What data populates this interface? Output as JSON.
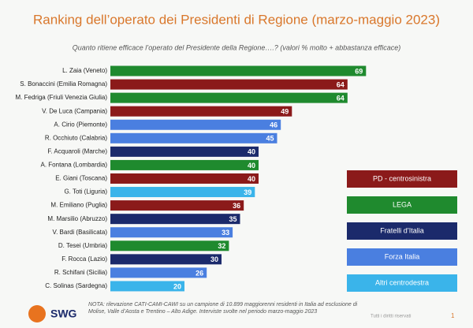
{
  "chart_data": {
    "type": "bar",
    "orientation": "horizontal",
    "title": "Ranking dell’operato dei Presidenti di Regione (marzo-maggio 2023)",
    "subtitle": "Quanto ritiene efficace l’operato del Presidente della Regione….? (valori % molto + abbastanza efficace)",
    "categories": [
      "L. Zaia (Veneto)",
      "S. Bonaccini (Emilia Romagna)",
      "M. Fedriga (Friuli Venezia Giulia)",
      "V. De Luca (Campania)",
      "A. Cirio (Piemonte)",
      "R. Occhiuto (Calabria)",
      "F. Acquaroli (Marche)",
      "A. Fontana (Lombardia)",
      "E. Giani (Toscana)",
      "G. Toti (Liguria)",
      "M. Emiliano (Puglia)",
      "M. Marsilio (Abruzzo)",
      "V. Bardi (Basilicata)",
      "D. Tesei (Umbria)",
      "F. Rocca (Lazio)",
      "R. Schifani (Sicilia)",
      "C. Solinas (Sardegna)"
    ],
    "values": [
      69,
      64,
      64,
      49,
      46,
      45,
      40,
      40,
      40,
      39,
      36,
      35,
      33,
      32,
      30,
      26,
      20
    ],
    "colors": [
      "#1f8a2e",
      "#8b1a1a",
      "#1f8a2e",
      "#8b1a1a",
      "#4a7fe0",
      "#4a7fe0",
      "#1b2a6b",
      "#1f8a2e",
      "#8b1a1a",
      "#3ab4ea",
      "#8b1a1a",
      "#1b2a6b",
      "#4a7fe0",
      "#1f8a2e",
      "#1b2a6b",
      "#4a7fe0",
      "#3ab4ea"
    ],
    "legend": [
      {
        "name": "PD - centrosinistra",
        "color": "#8b1a1a"
      },
      {
        "name": "LEGA",
        "color": "#1f8a2e"
      },
      {
        "name": "Fratelli d’Italia",
        "color": "#1b2a6b"
      },
      {
        "name": "Forza Italia",
        "color": "#4a7fe0"
      },
      {
        "name": "Altri centrodestra",
        "color": "#3ab4ea"
      }
    ],
    "logo": "SWG",
    "note": "NOTA: rilevazione CATI-CAMI-CAWI su un campione di 10.899 maggiorenni residenti in Italia ad esclusione di Molise, Valle d’Aosta e Trentino – Alto Adige. Interviste svolte nel periodo marzo-maggio 2023",
    "rights": "Tutti i diritti riservati",
    "page": "1"
  }
}
